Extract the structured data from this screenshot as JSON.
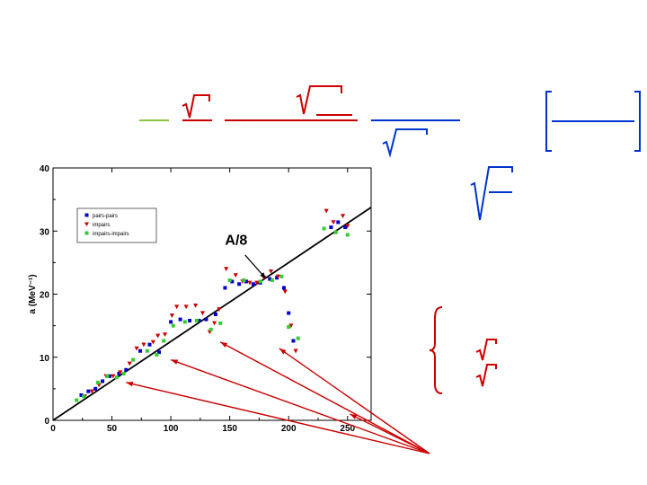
{
  "slide": {
    "background": "#ffffff",
    "formula_colors": {
      "green": "#8cc63f",
      "red": "#cc0000",
      "blue": "#0033cc"
    }
  },
  "chart_data": {
    "type": "scatter",
    "title": "",
    "xlabel": "",
    "ylabel": "a (MeV⁻¹)",
    "xlim": [
      0,
      270
    ],
    "ylim": [
      0,
      40
    ],
    "x_ticks": [
      0,
      50,
      100,
      150,
      200,
      250
    ],
    "y_ticks": [
      0,
      10,
      20,
      30,
      40
    ],
    "grid": false,
    "legend_position": "top-left",
    "reference_line": {
      "label": "A/8",
      "slope": 0.125,
      "intercept": 0,
      "color": "#000000"
    },
    "series": [
      {
        "name": "pairs-pairs",
        "color": "#0000cc",
        "marker": "square",
        "points": [
          [
            24,
            4
          ],
          [
            30,
            4.6
          ],
          [
            36,
            5
          ],
          [
            42,
            6.2
          ],
          [
            48,
            7
          ],
          [
            56,
            7.4
          ],
          [
            62,
            8
          ],
          [
            74,
            11
          ],
          [
            82,
            12
          ],
          [
            90,
            10.8
          ],
          [
            100,
            15.6
          ],
          [
            108,
            16
          ],
          [
            116,
            15.8
          ],
          [
            124,
            15.8
          ],
          [
            130,
            16
          ],
          [
            138,
            16.8
          ],
          [
            146,
            21
          ],
          [
            152,
            22
          ],
          [
            158,
            21.6
          ],
          [
            164,
            22
          ],
          [
            170,
            21.6
          ],
          [
            176,
            21.8
          ],
          [
            184,
            22.4
          ],
          [
            190,
            22.6
          ],
          [
            196,
            21
          ],
          [
            200,
            17
          ],
          [
            204,
            12.6
          ],
          [
            236,
            30.6
          ],
          [
            242,
            31.4
          ],
          [
            248,
            30.6
          ]
        ]
      },
      {
        "name": "impairs",
        "color": "#cc0000",
        "marker": "triangle-down",
        "points": [
          [
            27,
            3.8
          ],
          [
            33,
            4.6
          ],
          [
            39,
            5.6
          ],
          [
            45,
            7
          ],
          [
            51,
            7
          ],
          [
            57,
            7.6
          ],
          [
            65,
            9
          ],
          [
            71,
            11.4
          ],
          [
            77,
            12
          ],
          [
            85,
            12.4
          ],
          [
            89,
            13.4
          ],
          [
            95,
            13.6
          ],
          [
            101,
            16.6
          ],
          [
            105,
            18
          ],
          [
            113,
            18
          ],
          [
            121,
            18.2
          ],
          [
            127,
            17
          ],
          [
            133,
            14
          ],
          [
            137,
            15.4
          ],
          [
            141,
            17.6
          ],
          [
            147,
            24
          ],
          [
            155,
            23
          ],
          [
            161,
            22
          ],
          [
            167,
            21.8
          ],
          [
            173,
            21.8
          ],
          [
            179,
            22.6
          ],
          [
            185,
            23.6
          ],
          [
            191,
            22.8
          ],
          [
            197,
            20.4
          ],
          [
            202,
            15
          ],
          [
            206,
            11
          ],
          [
            232,
            33.2
          ],
          [
            238,
            31.4
          ],
          [
            246,
            32.4
          ],
          [
            250,
            30.8
          ]
        ]
      },
      {
        "name": "impairs-impairs",
        "color": "#33cc33",
        "marker": "square",
        "points": [
          [
            20,
            3.2
          ],
          [
            26,
            3.8
          ],
          [
            38,
            6
          ],
          [
            46,
            7
          ],
          [
            54,
            6.8
          ],
          [
            60,
            7.4
          ],
          [
            68,
            9.6
          ],
          [
            80,
            11
          ],
          [
            88,
            10.4
          ],
          [
            94,
            12.6
          ],
          [
            102,
            15
          ],
          [
            112,
            15.6
          ],
          [
            122,
            15.8
          ],
          [
            134,
            14.4
          ],
          [
            142,
            15.4
          ],
          [
            150,
            22.2
          ],
          [
            162,
            22.2
          ],
          [
            176,
            22
          ],
          [
            186,
            22.2
          ],
          [
            194,
            22.8
          ],
          [
            200,
            14.8
          ],
          [
            208,
            13
          ],
          [
            230,
            30.4
          ],
          [
            240,
            29.8
          ],
          [
            250,
            29.4
          ]
        ]
      }
    ],
    "annotations": [
      {
        "text": "A/8"
      }
    ]
  }
}
